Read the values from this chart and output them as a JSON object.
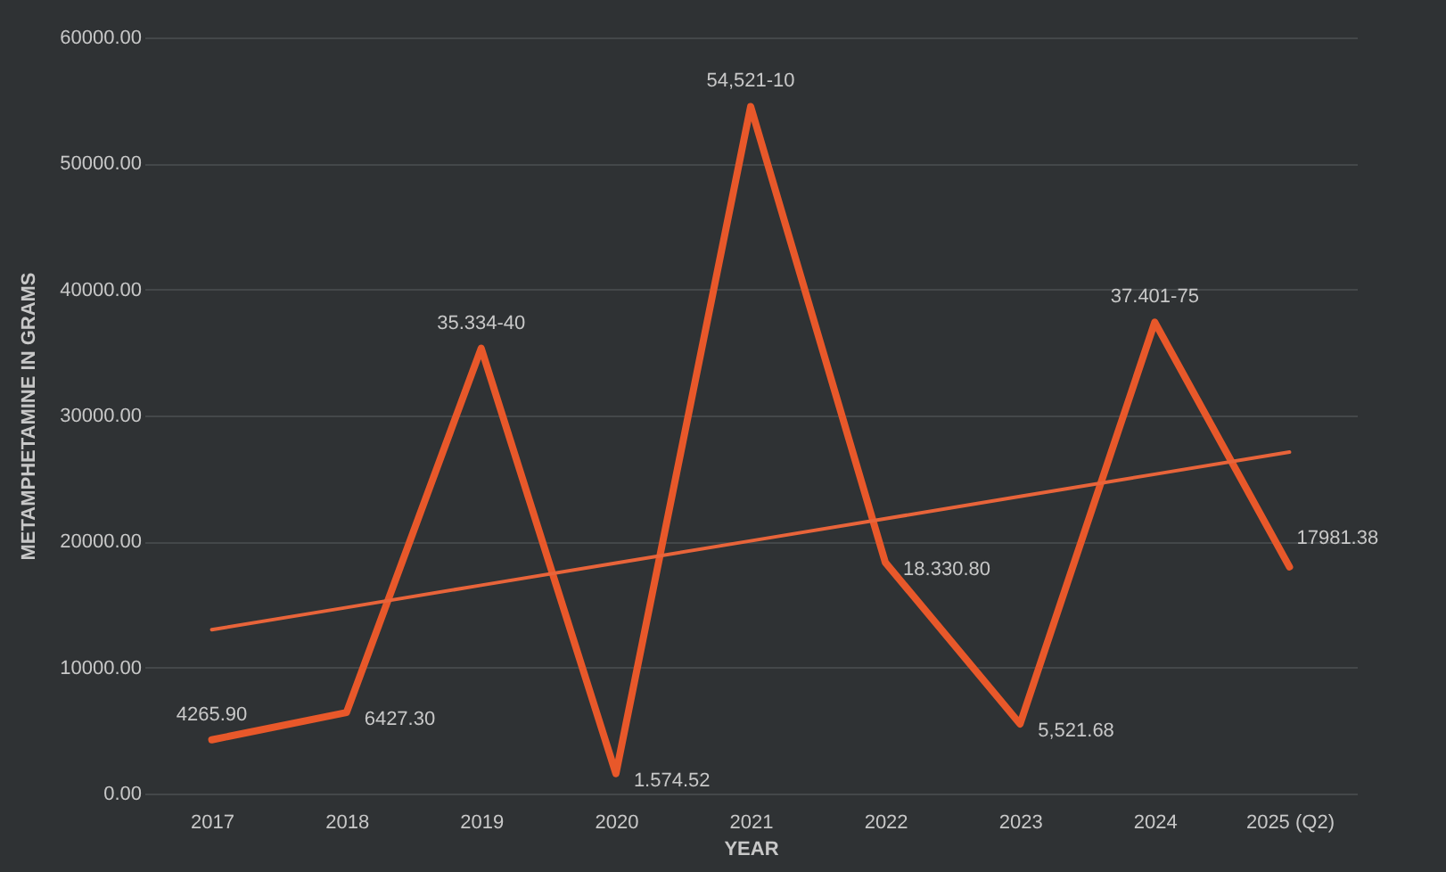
{
  "chart_data": {
    "type": "line",
    "xlabel": "YEAR",
    "ylabel": "METAMPHETAMINE IN GRAMS",
    "categories": [
      "2017",
      "2018",
      "2019",
      "2020",
      "2021",
      "2022",
      "2023",
      "2024",
      "2025 (Q2)"
    ],
    "series": [
      {
        "color": "#e8582a",
        "values": [
          4265.9,
          6427.3,
          35334.4,
          1574.52,
          54521.1,
          18330.8,
          5521.68,
          37401.75,
          17981.38
        ],
        "value_labels": [
          "4265.90",
          "6427.30",
          "35.334-40",
          "1.574.52",
          "54,521-10",
          "18.330.80",
          "5,521.68",
          "37.401-75",
          "17981.38"
        ]
      },
      {
        "type": "line",
        "color": "#e8643a",
        "values": [
          13000,
          14760,
          16530,
          18290,
          20050,
          21810,
          23580,
          25340,
          27100
        ]
      }
    ],
    "ylim": [
      0,
      60000
    ],
    "yticks": [
      {
        "value": 0,
        "label": "0.00"
      },
      {
        "value": 10000,
        "label": "10000.00"
      },
      {
        "value": 20000,
        "label": "20000.00"
      },
      {
        "value": 30000,
        "label": "30000.00"
      },
      {
        "value": 40000,
        "label": "40000.00"
      },
      {
        "value": 50000,
        "label": "50000.00"
      },
      {
        "value": 60000,
        "label": "60000.00"
      }
    ],
    "grid": "y",
    "marker": "none"
  }
}
